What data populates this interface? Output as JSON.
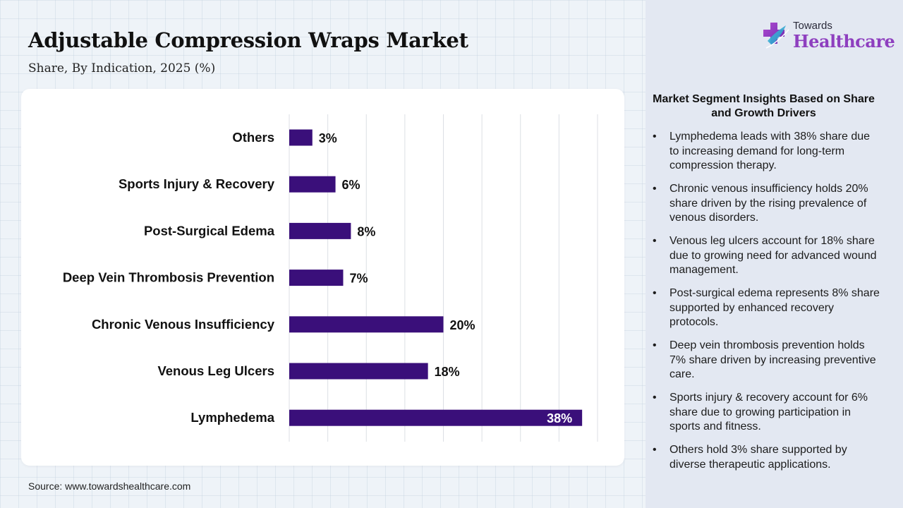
{
  "header": {
    "title": "Adjustable Compression Wraps Market",
    "subtitle": "Share, By Indication, 2025 (%)"
  },
  "logo": {
    "top_text": "Towards",
    "main_text": "Healthcare"
  },
  "colors": {
    "bar": "#3a0f7a",
    "label_inside": "#ffffff",
    "label_outside": "#111111",
    "logo_accent": "#8e3fbf"
  },
  "chart_data": {
    "type": "bar",
    "orientation": "horizontal",
    "categories": [
      "Others",
      "Sports Injury & Recovery",
      "Post-Surgical Edema",
      "Deep Vein Thrombosis Prevention",
      "Chronic Venous Insufficiency",
      "Venous Leg Ulcers",
      "Lymphedema"
    ],
    "values": [
      3,
      6,
      8,
      7,
      20,
      18,
      38
    ],
    "data_labels": [
      "3%",
      "6%",
      "8%",
      "7%",
      "20%",
      "18%",
      "38%"
    ],
    "xlim": [
      0,
      40
    ],
    "grid": true,
    "legend": "none"
  },
  "insights": {
    "title": "Market Segment Insights Based on Share and Growth Drivers",
    "items": [
      "Lymphedema leads with 38% share due to increasing demand for long-term compression therapy.",
      "Chronic venous insufficiency holds 20% share driven by the rising prevalence of venous disorders.",
      "Venous leg ulcers account for 18% share due to growing need for advanced wound management.",
      "Post-surgical edema represents 8% share supported by enhanced recovery protocols.",
      "Deep vein thrombosis prevention holds 7% share driven by increasing preventive care.",
      "Sports injury & recovery account for 6% share due to growing participation in sports and fitness.",
      "Others hold 3% share supported by diverse therapeutic applications."
    ]
  },
  "footer": {
    "source": "Source: www.towardshealthcare.com"
  }
}
